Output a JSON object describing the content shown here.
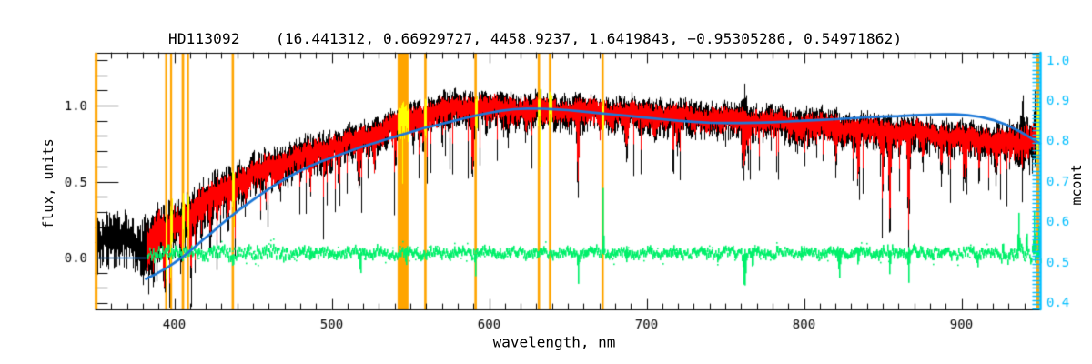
{
  "title": "HD113092    (16.441312, 0.66929727, 4458.9237, 1.6419843, −0.95305286, 0.54971862)",
  "axes": {
    "x": {
      "label": "wavelength, nm",
      "range": [
        350,
        950
      ],
      "major_ticks": [
        400,
        500,
        600,
        700,
        800,
        900
      ],
      "major_tick_labels": [
        "400",
        "500",
        "600",
        "700",
        "800",
        "900"
      ],
      "minor_step": 10
    },
    "y_left": {
      "label": "flux, units",
      "range": [
        -0.341,
        1.347
      ],
      "major_ticks": [
        0.0,
        0.5,
        1.0
      ],
      "major_tick_labels": [
        "0.0",
        "0.5",
        "1.0"
      ],
      "minor_step": 0.1
    },
    "y_right": {
      "label": "mcont",
      "range": [
        0.382,
        1.017
      ],
      "major_ticks": [
        0.4,
        0.5,
        0.6,
        0.7,
        0.8,
        0.9,
        1.0
      ],
      "major_tick_labels": [
        "0.4",
        "0.5",
        "0.6",
        "0.7",
        "0.8",
        "0.9",
        "1.0"
      ],
      "minor_step": 0.01
    }
  },
  "colors": {
    "frame": "#000000",
    "observed": "#000000",
    "fitted": "#FF0000",
    "continuum": "#1C78D8",
    "residual": "#00F06A",
    "masked_region": "#FFA500",
    "masked_data": "#FFFF00",
    "right_axis": "#00BFFF",
    "background": "#FFFFFF"
  },
  "chart_data": {
    "type": "line",
    "title": "HD113092    (16.441312, 0.66929727, 4458.9237, 1.6419843, −0.95305286, 0.54971862)",
    "xlabel": "wavelength, nm",
    "ylabel_left": "flux, units",
    "ylabel_right": "mcont",
    "xlim": [
      350,
      950
    ],
    "ylim_left": [
      -0.341,
      1.347
    ],
    "ylim_right": [
      0.382,
      1.017
    ],
    "series_legend": [
      {
        "name": "observed-spectrum",
        "color": "#000000"
      },
      {
        "name": "fitted-spectrum",
        "color": "#FF0000",
        "starts_nm": 382
      },
      {
        "name": "continuum-mcont-fit",
        "color": "#1C78D8",
        "starts_nm": 382
      },
      {
        "name": "residuals",
        "color": "#00F06A",
        "starts_nm": 382,
        "baseline_flux": 0.03
      },
      {
        "name": "masked-intervals",
        "color": "#FFA500",
        "data_in_mask_color": "#FFFF00"
      }
    ],
    "spectrum_envelope": [
      [
        350,
        0.1
      ],
      [
        356,
        0.13
      ],
      [
        362,
        0.11
      ],
      [
        368,
        0.14
      ],
      [
        374,
        0.1
      ],
      [
        379,
        0.07
      ],
      [
        382,
        0.12
      ],
      [
        386,
        0.15
      ],
      [
        390,
        0.2
      ],
      [
        394,
        0.17
      ],
      [
        398,
        0.21
      ],
      [
        403,
        0.25
      ],
      [
        408,
        0.29
      ],
      [
        413,
        0.33
      ],
      [
        418,
        0.38
      ],
      [
        424,
        0.41
      ],
      [
        430,
        0.45
      ],
      [
        436,
        0.49
      ],
      [
        442,
        0.52
      ],
      [
        448,
        0.55
      ],
      [
        455,
        0.58
      ],
      [
        462,
        0.61
      ],
      [
        470,
        0.64
      ],
      [
        478,
        0.67
      ],
      [
        486,
        0.69
      ],
      [
        494,
        0.72
      ],
      [
        502,
        0.74
      ],
      [
        510,
        0.76
      ],
      [
        518,
        0.78
      ],
      [
        526,
        0.82
      ],
      [
        534,
        0.86
      ],
      [
        542,
        0.89
      ],
      [
        550,
        0.92
      ],
      [
        558,
        0.95
      ],
      [
        566,
        0.97
      ],
      [
        574,
        0.985
      ],
      [
        582,
        1.0
      ],
      [
        590,
        1.0
      ],
      [
        600,
        0.995
      ],
      [
        610,
        0.99
      ],
      [
        620,
        0.985
      ],
      [
        632,
        0.98
      ],
      [
        644,
        0.975
      ],
      [
        656,
        0.97
      ],
      [
        668,
        0.965
      ],
      [
        680,
        0.96
      ],
      [
        692,
        0.955
      ],
      [
        704,
        0.95
      ],
      [
        716,
        0.94
      ],
      [
        728,
        0.93
      ],
      [
        740,
        0.925
      ],
      [
        752,
        0.915
      ],
      [
        764,
        0.91
      ],
      [
        776,
        0.9
      ],
      [
        788,
        0.895
      ],
      [
        800,
        0.885
      ],
      [
        812,
        0.875
      ],
      [
        824,
        0.865
      ],
      [
        836,
        0.855
      ],
      [
        848,
        0.845
      ],
      [
        860,
        0.835
      ],
      [
        872,
        0.825
      ],
      [
        884,
        0.815
      ],
      [
        896,
        0.8
      ],
      [
        908,
        0.79
      ],
      [
        918,
        0.78
      ],
      [
        928,
        0.77
      ],
      [
        936,
        0.76
      ],
      [
        942,
        0.78
      ],
      [
        946,
        0.82
      ],
      [
        950,
        0.85
      ]
    ],
    "continuum_points": [
      [
        382,
        -0.14
      ],
      [
        388,
        -0.11
      ],
      [
        394,
        -0.075
      ],
      [
        400,
        -0.035
      ],
      [
        406,
        0.01
      ],
      [
        412,
        0.06
      ],
      [
        418,
        0.115
      ],
      [
        424,
        0.165
      ],
      [
        430,
        0.22
      ],
      [
        436,
        0.27
      ],
      [
        442,
        0.32
      ],
      [
        448,
        0.365
      ],
      [
        455,
        0.415
      ],
      [
        462,
        0.465
      ],
      [
        470,
        0.515
      ],
      [
        478,
        0.56
      ],
      [
        486,
        0.6
      ],
      [
        494,
        0.635
      ],
      [
        502,
        0.665
      ],
      [
        510,
        0.695
      ],
      [
        518,
        0.725
      ],
      [
        526,
        0.75
      ],
      [
        534,
        0.775
      ],
      [
        542,
        0.8
      ],
      [
        550,
        0.825
      ],
      [
        558,
        0.85
      ],
      [
        566,
        0.87
      ],
      [
        574,
        0.89
      ],
      [
        582,
        0.91
      ],
      [
        590,
        0.93
      ],
      [
        600,
        0.952
      ],
      [
        608,
        0.966
      ],
      [
        616,
        0.976
      ],
      [
        624,
        0.98
      ],
      [
        634,
        0.979
      ],
      [
        642,
        0.975
      ],
      [
        650,
        0.97
      ],
      [
        660,
        0.96
      ],
      [
        670,
        0.95
      ],
      [
        680,
        0.94
      ],
      [
        690,
        0.93
      ],
      [
        700,
        0.92
      ],
      [
        710,
        0.91
      ],
      [
        720,
        0.9
      ],
      [
        730,
        0.893
      ],
      [
        740,
        0.887
      ],
      [
        750,
        0.885
      ],
      [
        760,
        0.885
      ],
      [
        770,
        0.887
      ],
      [
        780,
        0.89
      ],
      [
        790,
        0.895
      ],
      [
        800,
        0.9
      ],
      [
        810,
        0.905
      ],
      [
        820,
        0.91
      ],
      [
        830,
        0.916
      ],
      [
        840,
        0.922
      ],
      [
        850,
        0.927
      ],
      [
        860,
        0.93
      ],
      [
        870,
        0.936
      ],
      [
        880,
        0.94
      ],
      [
        888,
        0.943
      ],
      [
        896,
        0.942
      ],
      [
        904,
        0.936
      ],
      [
        912,
        0.925
      ],
      [
        920,
        0.905
      ],
      [
        928,
        0.875
      ],
      [
        936,
        0.835
      ],
      [
        942,
        0.8
      ],
      [
        946,
        0.775
      ],
      [
        950,
        0.75
      ]
    ],
    "continuum_zero_line_nm": [
      350,
      382
    ],
    "absorption_lines": [
      [
        380.5,
        0.15,
        0.9
      ],
      [
        383.5,
        0.14,
        0.8
      ],
      [
        389,
        0.16,
        0.8
      ],
      [
        393.4,
        0.3,
        0.9
      ],
      [
        396.8,
        0.28,
        0.9
      ],
      [
        404,
        0.14,
        0.7
      ],
      [
        410.2,
        0.22,
        0.8
      ],
      [
        417,
        0.12,
        0.7
      ],
      [
        422.7,
        0.25,
        0.9
      ],
      [
        427,
        0.15,
        0.7
      ],
      [
        434,
        0.18,
        0.8
      ],
      [
        438.3,
        0.18,
        0.7
      ],
      [
        445,
        0.12,
        0.7
      ],
      [
        458,
        0.12,
        0.7
      ],
      [
        467,
        0.13,
        0.7
      ],
      [
        486.1,
        0.22,
        0.8
      ],
      [
        495,
        0.14,
        0.7
      ],
      [
        504,
        0.12,
        0.7
      ],
      [
        517.2,
        0.26,
        1.1
      ],
      [
        527,
        0.22,
        0.8
      ],
      [
        540,
        0.16,
        0.8
      ],
      [
        552,
        0.12,
        0.7
      ],
      [
        558,
        0.13,
        0.7
      ],
      [
        570,
        0.12,
        0.7
      ],
      [
        589.3,
        0.4,
        0.9
      ],
      [
        598,
        0.1,
        0.7
      ],
      [
        612,
        0.12,
        0.7
      ],
      [
        623,
        0.13,
        0.8
      ],
      [
        656.3,
        0.54,
        0.8
      ],
      [
        670,
        0.1,
        0.7
      ],
      [
        687,
        0.2,
        1.0
      ],
      [
        705,
        0.1,
        0.8
      ],
      [
        719,
        0.14,
        0.9
      ],
      [
        762,
        0.24,
        1.5
      ],
      [
        795,
        0.1,
        0.8
      ],
      [
        820,
        0.18,
        0.8
      ],
      [
        834,
        0.33,
        0.9
      ],
      [
        849.8,
        0.28,
        0.8
      ],
      [
        854.2,
        0.6,
        0.9
      ],
      [
        866.2,
        0.63,
        0.9
      ],
      [
        875,
        0.14,
        0.8
      ],
      [
        887,
        0.18,
        0.8
      ],
      [
        902,
        0.24,
        1.0
      ],
      [
        911,
        0.16,
        0.8
      ],
      [
        922,
        0.18,
        1.0
      ]
    ],
    "emission_up_spikes": [
      [
        762,
        0.12,
        1.5
      ],
      [
        939,
        0.1,
        2.0
      ],
      [
        947,
        0.12,
        2.0
      ]
    ],
    "masked_regions_nm": [
      [
        350.4,
        1.6
      ],
      [
        394.8,
        1.2
      ],
      [
        398.0,
        1.3
      ],
      [
        405.5,
        1.6
      ],
      [
        408.7,
        1.2
      ],
      [
        437.2,
        1.5
      ],
      [
        545.3,
        6.9
      ],
      [
        559.5,
        1.5
      ],
      [
        591.4,
        1.5
      ],
      [
        631.6,
        1.5
      ],
      [
        638.7,
        1.5
      ],
      [
        672.1,
        1.5
      ],
      [
        948.5,
        1.8
      ]
    ],
    "residual_baseline": 0.03,
    "residual_noise_halfwidth": 0.022,
    "residual_spikes": [
      [
        437,
        -0.09,
        0.6
      ],
      [
        486,
        -0.06,
        0.5
      ],
      [
        518,
        -0.14,
        0.6
      ],
      [
        547,
        -0.08,
        0.8
      ],
      [
        591,
        -0.12,
        0.6
      ],
      [
        656.3,
        -0.21,
        0.5
      ],
      [
        672.1,
        0.38,
        0.45
      ],
      [
        687,
        -0.07,
        0.8
      ],
      [
        719,
        -0.05,
        0.7
      ],
      [
        745,
        -0.06,
        0.6
      ],
      [
        762,
        -0.19,
        1.2
      ],
      [
        767,
        -0.1,
        0.8
      ],
      [
        798,
        -0.05,
        0.6
      ],
      [
        822,
        -0.16,
        0.9
      ],
      [
        834,
        -0.09,
        0.6
      ],
      [
        854.2,
        -0.16,
        0.6
      ],
      [
        866.2,
        -0.18,
        0.6
      ],
      [
        887,
        -0.06,
        0.6
      ],
      [
        910,
        -0.07,
        0.7
      ],
      [
        926,
        0.08,
        0.5
      ],
      [
        936,
        0.22,
        0.7
      ],
      [
        941,
        0.15,
        0.5
      ],
      [
        946,
        0.28,
        0.6
      ],
      [
        949,
        0.2,
        0.5
      ]
    ]
  }
}
